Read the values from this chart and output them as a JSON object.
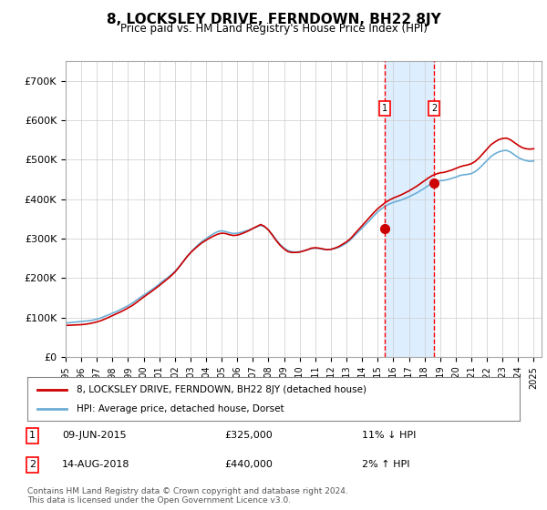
{
  "title": "8, LOCKSLEY DRIVE, FERNDOWN, BH22 8JY",
  "subtitle": "Price paid vs. HM Land Registry's House Price Index (HPI)",
  "hpi_color": "#6baed6",
  "price_color": "#cc0000",
  "background_color": "#ffffff",
  "grid_color": "#cccccc",
  "marker_region_color": "#ddeeff",
  "marker1_x": 2015.44,
  "marker2_x": 2018.62,
  "marker1_price": 325000,
  "marker2_price": 440000,
  "marker1_label": "09-JUN-2015",
  "marker2_label": "14-AUG-2018",
  "marker1_hpi": "11% ↓ HPI",
  "marker2_hpi": "2% ↑ HPI",
  "legend_line1": "8, LOCKSLEY DRIVE, FERNDOWN, BH22 8JY (detached house)",
  "legend_line2": "HPI: Average price, detached house, Dorset",
  "footnote": "Contains HM Land Registry data © Crown copyright and database right 2024.\nThis data is licensed under the Open Government Licence v3.0.",
  "xlim_left": 1995.0,
  "xlim_right": 2025.5,
  "ylim_bottom": 0,
  "ylim_top": 750000,
  "ytick_values": [
    0,
    100000,
    200000,
    300000,
    400000,
    500000,
    600000,
    700000
  ],
  "ytick_labels": [
    "£0",
    "£100K",
    "£200K",
    "£300K",
    "£400K",
    "£500K",
    "£600K",
    "£700K"
  ],
  "xtick_years": [
    1995,
    1996,
    1997,
    1998,
    1999,
    2000,
    2001,
    2002,
    2003,
    2004,
    2005,
    2006,
    2007,
    2008,
    2009,
    2010,
    2011,
    2012,
    2013,
    2014,
    2015,
    2016,
    2017,
    2018,
    2019,
    2020,
    2021,
    2022,
    2023,
    2024,
    2025
  ],
  "hpi_years": [
    1995,
    1995.25,
    1995.5,
    1995.75,
    1996,
    1996.25,
    1996.5,
    1996.75,
    1997,
    1997.25,
    1997.5,
    1997.75,
    1998,
    1998.25,
    1998.5,
    1998.75,
    1999,
    1999.25,
    1999.5,
    1999.75,
    2000,
    2000.25,
    2000.5,
    2000.75,
    2001,
    2001.25,
    2001.5,
    2001.75,
    2002,
    2002.25,
    2002.5,
    2002.75,
    2003,
    2003.25,
    2003.5,
    2003.75,
    2004,
    2004.25,
    2004.5,
    2004.75,
    2005,
    2005.25,
    2005.5,
    2005.75,
    2006,
    2006.25,
    2006.5,
    2006.75,
    2007,
    2007.25,
    2007.5,
    2007.75,
    2008,
    2008.25,
    2008.5,
    2008.75,
    2009,
    2009.25,
    2009.5,
    2009.75,
    2010,
    2010.25,
    2010.5,
    2010.75,
    2011,
    2011.25,
    2011.5,
    2011.75,
    2012,
    2012.25,
    2012.5,
    2012.75,
    2013,
    2013.25,
    2013.5,
    2013.75,
    2014,
    2014.25,
    2014.5,
    2014.75,
    2015,
    2015.25,
    2015.5,
    2015.75,
    2016,
    2016.25,
    2016.5,
    2016.75,
    2017,
    2017.25,
    2017.5,
    2017.75,
    2018,
    2018.25,
    2018.5,
    2018.75,
    2019,
    2019.25,
    2019.5,
    2019.75,
    2020,
    2020.25,
    2020.5,
    2020.75,
    2021,
    2021.25,
    2021.5,
    2021.75,
    2022,
    2022.25,
    2022.5,
    2022.75,
    2023,
    2023.25,
    2023.5,
    2023.75,
    2024,
    2024.25,
    2024.5,
    2024.75,
    2025
  ],
  "hpi_values": [
    86000,
    87000,
    88000,
    89000,
    90000,
    91000,
    92000,
    93500,
    96000,
    99000,
    103000,
    107000,
    111000,
    115000,
    120000,
    125000,
    130000,
    136000,
    143000,
    150000,
    157000,
    163000,
    170000,
    177000,
    185000,
    193000,
    200000,
    208000,
    217000,
    228000,
    240000,
    253000,
    265000,
    275000,
    285000,
    293000,
    300000,
    307000,
    313000,
    318000,
    320000,
    318000,
    315000,
    313000,
    314000,
    316000,
    319000,
    322000,
    326000,
    330000,
    334000,
    330000,
    322000,
    310000,
    297000,
    285000,
    276000,
    270000,
    267000,
    266000,
    267000,
    269000,
    272000,
    275000,
    276000,
    275000,
    273000,
    272000,
    273000,
    275000,
    278000,
    283000,
    289000,
    297000,
    307000,
    317000,
    327000,
    337000,
    347000,
    358000,
    368000,
    376000,
    383000,
    388000,
    392000,
    395000,
    398000,
    402000,
    406000,
    411000,
    416000,
    422000,
    428000,
    435000,
    441000,
    445000,
    447000,
    448000,
    450000,
    453000,
    456000,
    460000,
    462000,
    463000,
    465000,
    470000,
    478000,
    488000,
    498000,
    508000,
    515000,
    520000,
    523000,
    524000,
    520000,
    513000,
    506000,
    501000,
    498000,
    496000,
    497000
  ],
  "price_years": [
    1995,
    1995.25,
    1995.5,
    1995.75,
    1996,
    1996.25,
    1996.5,
    1996.75,
    1997,
    1997.25,
    1997.5,
    1997.75,
    1998,
    1998.25,
    1998.5,
    1998.75,
    1999,
    1999.25,
    1999.5,
    1999.75,
    2000,
    2000.25,
    2000.5,
    2000.75,
    2001,
    2001.25,
    2001.5,
    2001.75,
    2002,
    2002.25,
    2002.5,
    2002.75,
    2003,
    2003.25,
    2003.5,
    2003.75,
    2004,
    2004.25,
    2004.5,
    2004.75,
    2005,
    2005.25,
    2005.5,
    2005.75,
    2006,
    2006.25,
    2006.5,
    2006.75,
    2007,
    2007.25,
    2007.5,
    2007.75,
    2008,
    2008.25,
    2008.5,
    2008.75,
    2009,
    2009.25,
    2009.5,
    2009.75,
    2010,
    2010.25,
    2010.5,
    2010.75,
    2011,
    2011.25,
    2011.5,
    2011.75,
    2012,
    2012.25,
    2012.5,
    2012.75,
    2013,
    2013.25,
    2013.5,
    2013.75,
    2014,
    2014.25,
    2014.5,
    2014.75,
    2015,
    2015.25,
    2015.5,
    2015.75,
    2016,
    2016.25,
    2016.5,
    2016.75,
    2017,
    2017.25,
    2017.5,
    2017.75,
    2018,
    2018.25,
    2018.5,
    2018.75,
    2019,
    2019.25,
    2019.5,
    2019.75,
    2020,
    2020.25,
    2020.5,
    2020.75,
    2021,
    2021.25,
    2021.5,
    2021.75,
    2022,
    2022.25,
    2022.5,
    2022.75,
    2023,
    2023.25,
    2023.5,
    2023.75,
    2024,
    2024.25,
    2024.5,
    2024.75,
    2025
  ],
  "price_values": [
    80000,
    80500,
    81000,
    81500,
    82000,
    83000,
    84500,
    86500,
    89000,
    92000,
    96000,
    100500,
    105000,
    109500,
    114000,
    119000,
    124500,
    130000,
    137000,
    144500,
    152000,
    159000,
    166000,
    173500,
    181000,
    189000,
    197000,
    205500,
    215000,
    227000,
    240000,
    253000,
    264000,
    273500,
    282000,
    290000,
    296000,
    302000,
    307000,
    311500,
    314000,
    313000,
    310000,
    308000,
    309000,
    312000,
    316000,
    320500,
    326000,
    331000,
    336000,
    331000,
    322000,
    309000,
    295000,
    283000,
    274000,
    267000,
    265000,
    265000,
    266000,
    269000,
    272000,
    276000,
    277000,
    276000,
    274000,
    272000,
    273000,
    276000,
    280000,
    286000,
    292000,
    300000,
    311000,
    322000,
    333000,
    344000,
    355000,
    366000,
    376000,
    384000,
    392000,
    398000,
    403000,
    407000,
    411000,
    416000,
    421000,
    427000,
    433000,
    440000,
    447000,
    454000,
    460000,
    464000,
    467000,
    468000,
    471000,
    474000,
    478000,
    482000,
    485000,
    487000,
    490000,
    496000,
    505000,
    516000,
    527000,
    538000,
    545000,
    551000,
    554000,
    555000,
    551000,
    544000,
    537000,
    531000,
    528000,
    527000,
    528000
  ]
}
